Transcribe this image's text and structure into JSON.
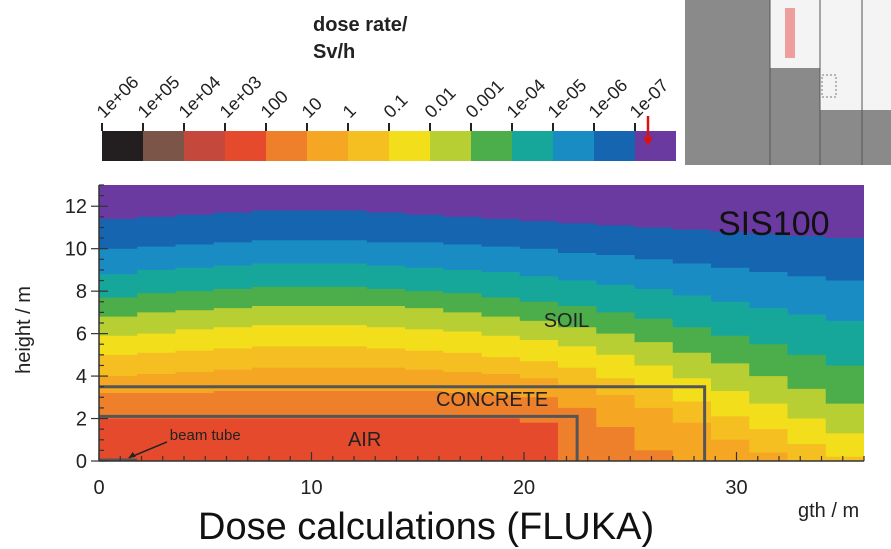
{
  "colorbar": {
    "title_line1": "dose rate/",
    "title_line2": "Sv/h",
    "tick_labels": [
      "1e+06",
      "1e+05",
      "1e+04",
      "1e+03",
      "100",
      "10",
      "1",
      "0.1",
      "0.01",
      "0.001",
      "1e-04",
      "1e-05",
      "1e-06",
      "1e-07"
    ],
    "colors": [
      "#231f20",
      "#7a5548",
      "#c4483c",
      "#e44a2b",
      "#ee7f2b",
      "#f5a623",
      "#f5bf22",
      "#f3de1b",
      "#b8cf33",
      "#4cad4b",
      "#16a79a",
      "#1a8cc4",
      "#1565b0",
      "#6a3aa1"
    ]
  },
  "inset": {
    "label": "SIS100"
  },
  "bottom_title": "Dose calculations (FLUKA)",
  "chart_data": {
    "type": "heatmap",
    "title": "",
    "xlabel": "gth / m",
    "ylabel": "height / m",
    "xlim": [
      0,
      36
    ],
    "ylim": [
      0,
      13
    ],
    "x_ticks": [
      "0",
      "10",
      "20",
      "30"
    ],
    "y_ticks": [
      "0",
      "2",
      "4",
      "6",
      "8",
      "10",
      "12"
    ],
    "bands": [
      {
        "dose": "1e+03",
        "color": "#e44a2b",
        "top": [
          2,
          2,
          2,
          2,
          2,
          2,
          2,
          2,
          2,
          2,
          2,
          1.8,
          0,
          0,
          0,
          0,
          0,
          0,
          0,
          0
        ]
      },
      {
        "dose": "100",
        "color": "#ee7f2b",
        "top": [
          3.2,
          3.2,
          3.2,
          3.3,
          3.3,
          3.3,
          3.3,
          3.3,
          3.3,
          3.2,
          3.1,
          3.0,
          2.5,
          1.6,
          0.5,
          0,
          0,
          0,
          0,
          0
        ]
      },
      {
        "dose": "10",
        "color": "#f5a623",
        "top": [
          4.0,
          4.1,
          4.2,
          4.3,
          4.4,
          4.4,
          4.4,
          4.4,
          4.3,
          4.2,
          4.1,
          3.9,
          3.6,
          3.1,
          2.5,
          1.8,
          1.0,
          0.4,
          0,
          0
        ]
      },
      {
        "dose": "1",
        "color": "#f5bf22",
        "top": [
          5.0,
          5.1,
          5.2,
          5.3,
          5.4,
          5.4,
          5.4,
          5.3,
          5.2,
          5.1,
          4.9,
          4.7,
          4.4,
          3.9,
          3.4,
          2.8,
          2.1,
          1.5,
          0.8,
          0.2
        ]
      },
      {
        "dose": "0.1",
        "color": "#f3de1b",
        "top": [
          5.9,
          6.0,
          6.2,
          6.3,
          6.4,
          6.4,
          6.4,
          6.3,
          6.2,
          6.1,
          5.9,
          5.7,
          5.4,
          5.0,
          4.5,
          3.9,
          3.3,
          2.7,
          2.0,
          1.3
        ]
      },
      {
        "dose": "0.01",
        "color": "#b8cf33",
        "top": [
          6.8,
          7.0,
          7.1,
          7.2,
          7.3,
          7.3,
          7.3,
          7.3,
          7.2,
          7.0,
          6.8,
          6.6,
          6.3,
          6.0,
          5.6,
          5.1,
          4.6,
          4.0,
          3.4,
          2.7
        ]
      },
      {
        "dose": "0.001",
        "color": "#4cad4b",
        "top": [
          7.7,
          7.9,
          8.0,
          8.1,
          8.2,
          8.2,
          8.2,
          8.1,
          8.0,
          7.9,
          7.7,
          7.5,
          7.3,
          7.0,
          6.7,
          6.3,
          5.9,
          5.5,
          5.0,
          4.5
        ]
      },
      {
        "dose": "1e-04",
        "color": "#16a79a",
        "top": [
          8.8,
          9.0,
          9.1,
          9.2,
          9.3,
          9.3,
          9.3,
          9.2,
          9.1,
          9.0,
          8.9,
          8.7,
          8.5,
          8.3,
          8.1,
          7.8,
          7.5,
          7.2,
          6.9,
          6.6
        ]
      },
      {
        "dose": "1e-05",
        "color": "#1a8cc4",
        "top": [
          10.0,
          10.1,
          10.2,
          10.3,
          10.4,
          10.4,
          10.4,
          10.3,
          10.3,
          10.2,
          10.1,
          10.0,
          9.8,
          9.7,
          9.5,
          9.3,
          9.1,
          8.9,
          8.7,
          8.5
        ]
      },
      {
        "dose": "1e-06",
        "color": "#1565b0",
        "top": [
          11.4,
          11.5,
          11.6,
          11.7,
          11.8,
          11.8,
          11.8,
          11.7,
          11.6,
          11.5,
          11.4,
          11.3,
          11.2,
          11.1,
          11.0,
          10.9,
          10.8,
          10.7,
          10.6,
          10.5
        ]
      },
      {
        "dose": "1e-07",
        "color": "#6a3aa1",
        "top": [
          13,
          13,
          13,
          13,
          13,
          13,
          13,
          13,
          13,
          13,
          13,
          13,
          13,
          13,
          13,
          13,
          13,
          13,
          13,
          13
        ]
      }
    ],
    "regions": [
      {
        "label": "SOIL",
        "x": 22,
        "y": 6.3
      },
      {
        "label": "CONCRETE",
        "x": 18.5,
        "y": 2.6
      },
      {
        "label": "AIR",
        "x": 12.5,
        "y": 0.7
      },
      {
        "label": "beam tube",
        "x": 5,
        "y": 1.0
      }
    ],
    "concrete_outline": {
      "x_end": 28.5,
      "y_top": 3.5
    },
    "air_outline": {
      "x_end": 22.5,
      "y_top": 2.1
    }
  }
}
